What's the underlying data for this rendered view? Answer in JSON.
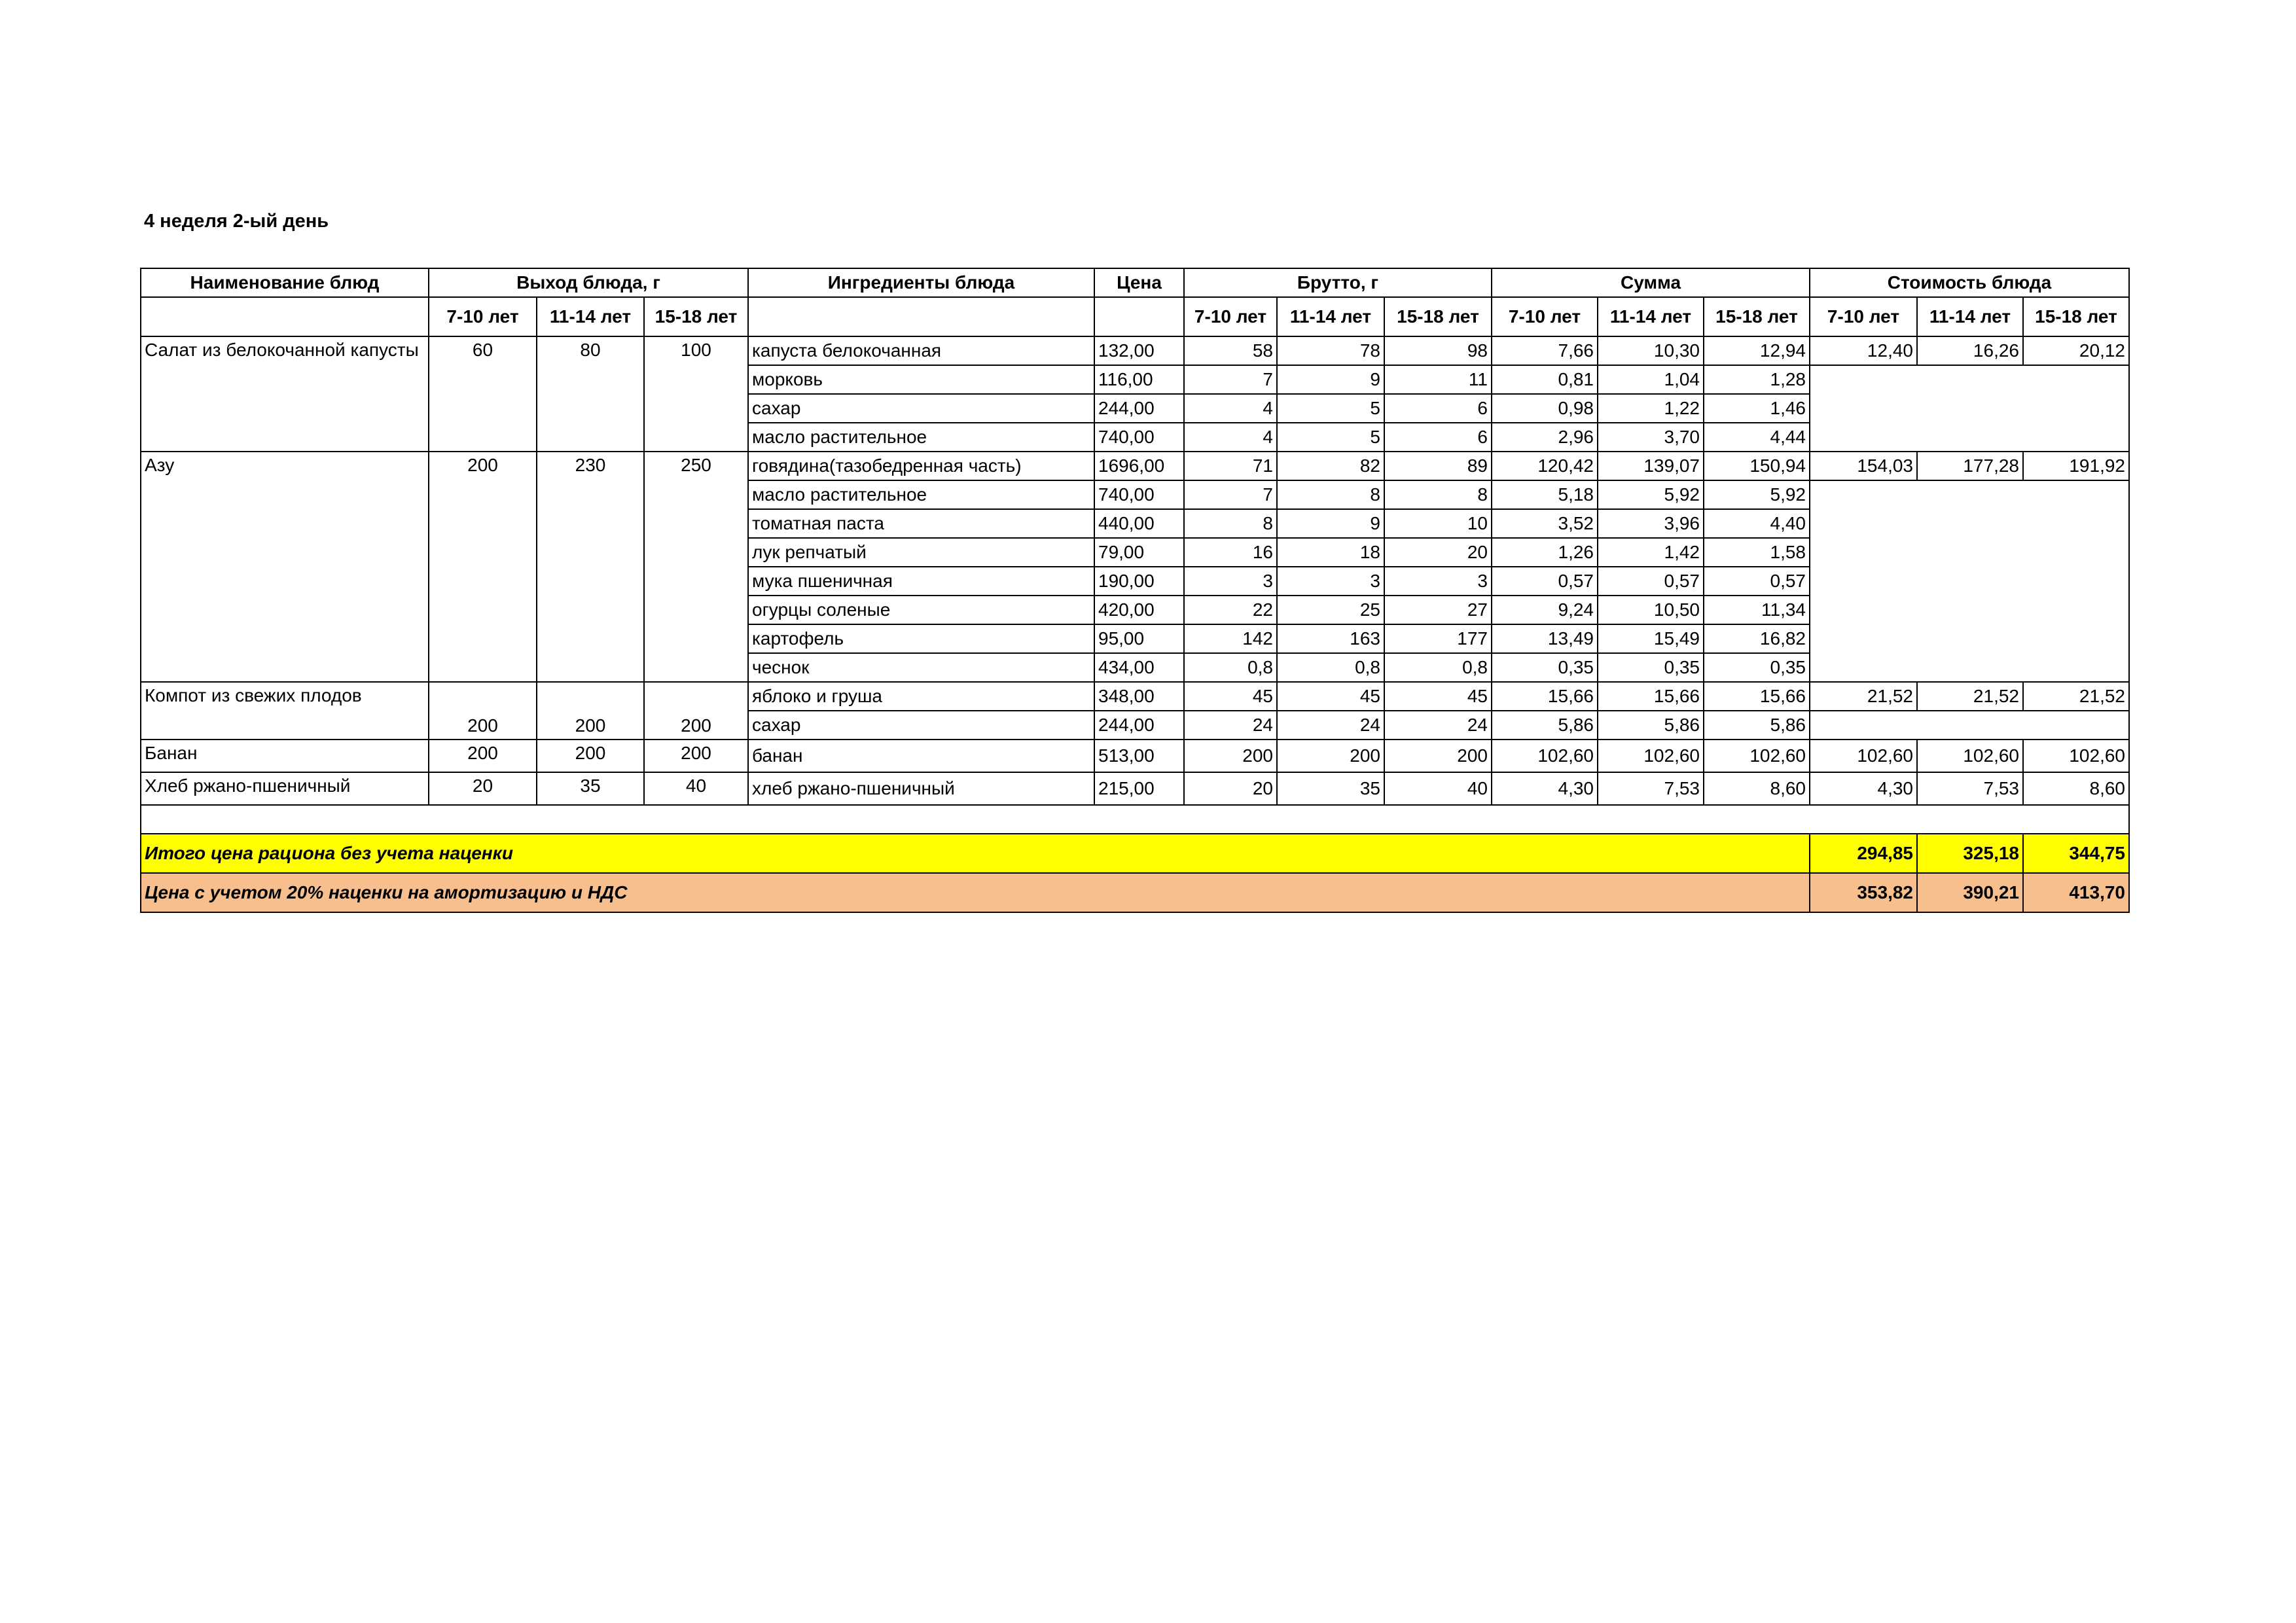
{
  "title": "4 неделя 2-ый день",
  "headers": {
    "dish": "Наименование блюд",
    "yield": "Выход блюда, г",
    "ingredients": "Ингредиенты блюда",
    "price": "Цена",
    "brutto": "Брутто, г",
    "sum": "Сумма",
    "cost": "Стоимость блюда",
    "ages": [
      "7-10 лет",
      "11-14 лет",
      "15-18 лет"
    ]
  },
  "dishes": [
    {
      "name": "Салат из белокочанной капусты",
      "yield": [
        "60",
        "80",
        "100"
      ],
      "cost": [
        "12,40",
        "16,26",
        "20,12"
      ],
      "ingredients": [
        {
          "name": "капуста белокочанная",
          "price": "132,00",
          "brutto": [
            "58",
            "78",
            "98"
          ],
          "sum": [
            "7,66",
            "10,30",
            "12,94"
          ]
        },
        {
          "name": "морковь",
          "price": "116,00",
          "brutto": [
            "7",
            "9",
            "11"
          ],
          "sum": [
            "0,81",
            "1,04",
            "1,28"
          ]
        },
        {
          "name": "сахар",
          "price": "244,00",
          "brutto": [
            "4",
            "5",
            "6"
          ],
          "sum": [
            "0,98",
            "1,22",
            "1,46"
          ]
        },
        {
          "name": "масло растительное",
          "price": "740,00",
          "brutto": [
            "4",
            "5",
            "6"
          ],
          "sum": [
            "2,96",
            "3,70",
            "4,44"
          ]
        }
      ]
    },
    {
      "name": "Азу",
      "yield": [
        "200",
        "230",
        "250"
      ],
      "cost": [
        "154,03",
        "177,28",
        "191,92"
      ],
      "ingredients": [
        {
          "name": "говядина(тазобедренная часть)",
          "price": "1696,00",
          "brutto": [
            "71",
            "82",
            "89"
          ],
          "sum": [
            "120,42",
            "139,07",
            "150,94"
          ]
        },
        {
          "name": "масло растительное",
          "price": "740,00",
          "brutto": [
            "7",
            "8",
            "8"
          ],
          "sum": [
            "5,18",
            "5,92",
            "5,92"
          ]
        },
        {
          "name": "томатная паста",
          "price": "440,00",
          "brutto": [
            "8",
            "9",
            "10"
          ],
          "sum": [
            "3,52",
            "3,96",
            "4,40"
          ]
        },
        {
          "name": "лук репчатый",
          "price": "79,00",
          "brutto": [
            "16",
            "18",
            "20"
          ],
          "sum": [
            "1,26",
            "1,42",
            "1,58"
          ]
        },
        {
          "name": "мука пшеничная",
          "price": "190,00",
          "brutto": [
            "3",
            "3",
            "3"
          ],
          "sum": [
            "0,57",
            "0,57",
            "0,57"
          ]
        },
        {
          "name": "огурцы соленые",
          "price": "420,00",
          "brutto": [
            "22",
            "25",
            "27"
          ],
          "sum": [
            "9,24",
            "10,50",
            "11,34"
          ]
        },
        {
          "name": "картофель",
          "price": "95,00",
          "brutto": [
            "142",
            "163",
            "177"
          ],
          "sum": [
            "13,49",
            "15,49",
            "16,82"
          ]
        },
        {
          "name": "чеснок",
          "price": "434,00",
          "brutto": [
            "0,8",
            "0,8",
            "0,8"
          ],
          "sum": [
            "0,35",
            "0,35",
            "0,35"
          ]
        }
      ]
    },
    {
      "name": "Компот из свежих плодов",
      "yield": [
        "200",
        "200",
        "200"
      ],
      "yield_bottom": true,
      "cost": [
        "21,52",
        "21,52",
        "21,52"
      ],
      "ingredients": [
        {
          "name": "яблоко и груша",
          "price": "348,00",
          "brutto": [
            "45",
            "45",
            "45"
          ],
          "sum": [
            "15,66",
            "15,66",
            "15,66"
          ]
        },
        {
          "name": "сахар",
          "price": "244,00",
          "brutto": [
            "24",
            "24",
            "24"
          ],
          "sum": [
            "5,86",
            "5,86",
            "5,86"
          ]
        }
      ]
    },
    {
      "name": "Банан",
      "yield": [
        "200",
        "200",
        "200"
      ],
      "cost": [
        "102,60",
        "102,60",
        "102,60"
      ],
      "ingredients": [
        {
          "name": "банан",
          "price": "513,00",
          "brutto": [
            "200",
            "200",
            "200"
          ],
          "sum": [
            "102,60",
            "102,60",
            "102,60"
          ]
        }
      ]
    },
    {
      "name": "Хлеб ржано-пшеничный",
      "yield": [
        "20",
        "35",
        "40"
      ],
      "cost": [
        "4,30",
        "7,53",
        "8,60"
      ],
      "ingredients": [
        {
          "name": "хлеб ржано-пшеничный",
          "price": "215,00",
          "brutto": [
            "20",
            "35",
            "40"
          ],
          "sum": [
            "4,30",
            "7,53",
            "8,60"
          ]
        }
      ]
    }
  ],
  "totals": [
    {
      "label": "Итого цена рациона без учета наценки",
      "values": [
        "294,85",
        "325,18",
        "344,75"
      ],
      "color": "#FFFF00"
    },
    {
      "label": "Цена с учетом 20% наценки на амортизацию и НДС",
      "values": [
        "353,82",
        "390,21",
        "413,70"
      ],
      "color": "#F8BF8E"
    }
  ]
}
